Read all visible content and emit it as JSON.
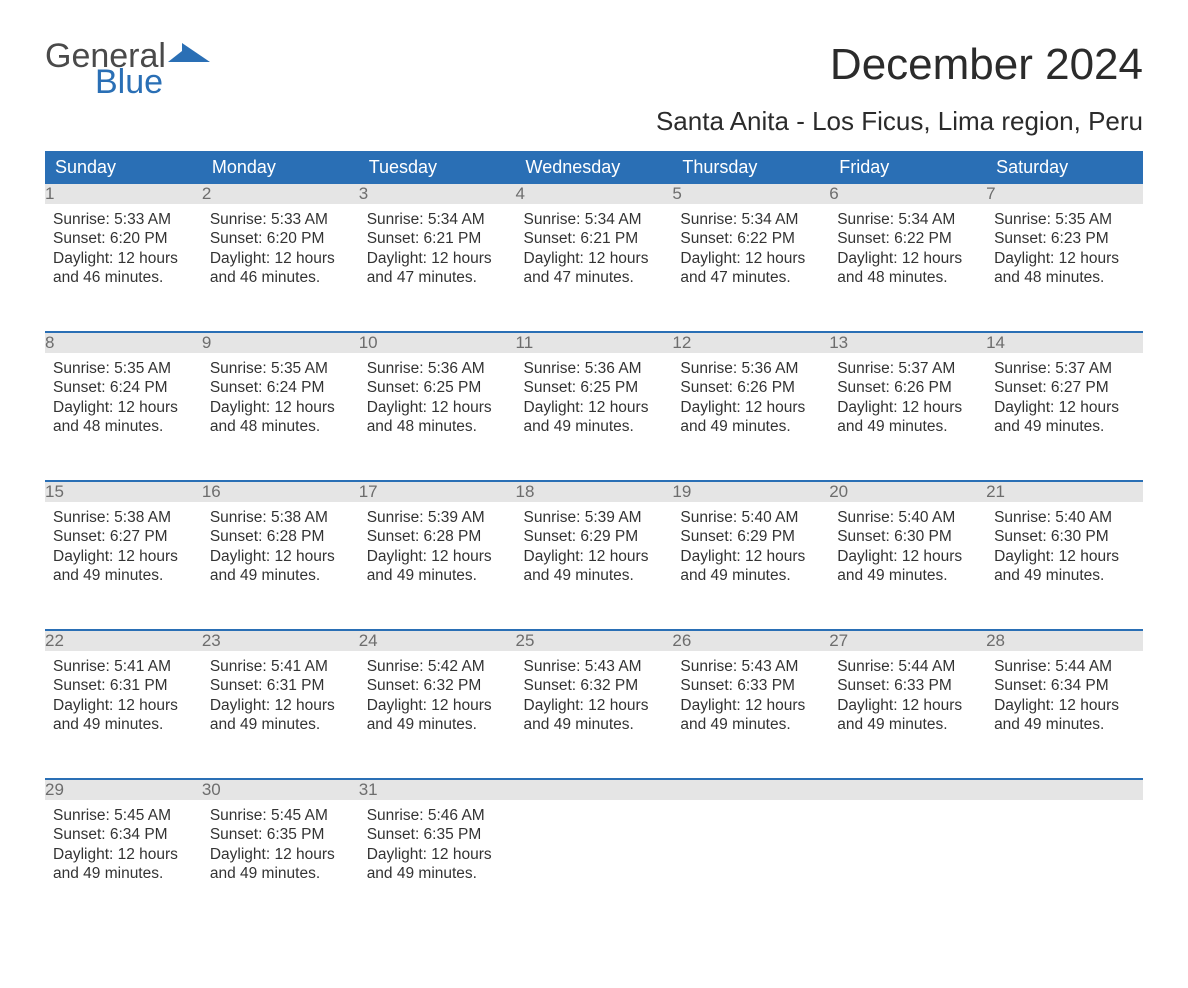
{
  "brand": {
    "word1": "General",
    "word2": "Blue",
    "accent_color": "#2a6fb5",
    "text_color": "#4a4a4a"
  },
  "title": "December 2024",
  "location": "Santa Anita - Los Ficus, Lima region, Peru",
  "colors": {
    "header_bg": "#2a6fb5",
    "header_text": "#ffffff",
    "daynum_bg": "#e5e5e5",
    "daynum_text": "#6d6d6d",
    "body_text": "#333333",
    "page_bg": "#ffffff",
    "week_border": "#2a6fb5"
  },
  "weekdays": [
    "Sunday",
    "Monday",
    "Tuesday",
    "Wednesday",
    "Thursday",
    "Friday",
    "Saturday"
  ],
  "weeks": [
    [
      {
        "n": "1",
        "sunrise": "Sunrise: 5:33 AM",
        "sunset": "Sunset: 6:20 PM",
        "d1": "Daylight: 12 hours",
        "d2": "and 46 minutes."
      },
      {
        "n": "2",
        "sunrise": "Sunrise: 5:33 AM",
        "sunset": "Sunset: 6:20 PM",
        "d1": "Daylight: 12 hours",
        "d2": "and 46 minutes."
      },
      {
        "n": "3",
        "sunrise": "Sunrise: 5:34 AM",
        "sunset": "Sunset: 6:21 PM",
        "d1": "Daylight: 12 hours",
        "d2": "and 47 minutes."
      },
      {
        "n": "4",
        "sunrise": "Sunrise: 5:34 AM",
        "sunset": "Sunset: 6:21 PM",
        "d1": "Daylight: 12 hours",
        "d2": "and 47 minutes."
      },
      {
        "n": "5",
        "sunrise": "Sunrise: 5:34 AM",
        "sunset": "Sunset: 6:22 PM",
        "d1": "Daylight: 12 hours",
        "d2": "and 47 minutes."
      },
      {
        "n": "6",
        "sunrise": "Sunrise: 5:34 AM",
        "sunset": "Sunset: 6:22 PM",
        "d1": "Daylight: 12 hours",
        "d2": "and 48 minutes."
      },
      {
        "n": "7",
        "sunrise": "Sunrise: 5:35 AM",
        "sunset": "Sunset: 6:23 PM",
        "d1": "Daylight: 12 hours",
        "d2": "and 48 minutes."
      }
    ],
    [
      {
        "n": "8",
        "sunrise": "Sunrise: 5:35 AM",
        "sunset": "Sunset: 6:24 PM",
        "d1": "Daylight: 12 hours",
        "d2": "and 48 minutes."
      },
      {
        "n": "9",
        "sunrise": "Sunrise: 5:35 AM",
        "sunset": "Sunset: 6:24 PM",
        "d1": "Daylight: 12 hours",
        "d2": "and 48 minutes."
      },
      {
        "n": "10",
        "sunrise": "Sunrise: 5:36 AM",
        "sunset": "Sunset: 6:25 PM",
        "d1": "Daylight: 12 hours",
        "d2": "and 48 minutes."
      },
      {
        "n": "11",
        "sunrise": "Sunrise: 5:36 AM",
        "sunset": "Sunset: 6:25 PM",
        "d1": "Daylight: 12 hours",
        "d2": "and 49 minutes."
      },
      {
        "n": "12",
        "sunrise": "Sunrise: 5:36 AM",
        "sunset": "Sunset: 6:26 PM",
        "d1": "Daylight: 12 hours",
        "d2": "and 49 minutes."
      },
      {
        "n": "13",
        "sunrise": "Sunrise: 5:37 AM",
        "sunset": "Sunset: 6:26 PM",
        "d1": "Daylight: 12 hours",
        "d2": "and 49 minutes."
      },
      {
        "n": "14",
        "sunrise": "Sunrise: 5:37 AM",
        "sunset": "Sunset: 6:27 PM",
        "d1": "Daylight: 12 hours",
        "d2": "and 49 minutes."
      }
    ],
    [
      {
        "n": "15",
        "sunrise": "Sunrise: 5:38 AM",
        "sunset": "Sunset: 6:27 PM",
        "d1": "Daylight: 12 hours",
        "d2": "and 49 minutes."
      },
      {
        "n": "16",
        "sunrise": "Sunrise: 5:38 AM",
        "sunset": "Sunset: 6:28 PM",
        "d1": "Daylight: 12 hours",
        "d2": "and 49 minutes."
      },
      {
        "n": "17",
        "sunrise": "Sunrise: 5:39 AM",
        "sunset": "Sunset: 6:28 PM",
        "d1": "Daylight: 12 hours",
        "d2": "and 49 minutes."
      },
      {
        "n": "18",
        "sunrise": "Sunrise: 5:39 AM",
        "sunset": "Sunset: 6:29 PM",
        "d1": "Daylight: 12 hours",
        "d2": "and 49 minutes."
      },
      {
        "n": "19",
        "sunrise": "Sunrise: 5:40 AM",
        "sunset": "Sunset: 6:29 PM",
        "d1": "Daylight: 12 hours",
        "d2": "and 49 minutes."
      },
      {
        "n": "20",
        "sunrise": "Sunrise: 5:40 AM",
        "sunset": "Sunset: 6:30 PM",
        "d1": "Daylight: 12 hours",
        "d2": "and 49 minutes."
      },
      {
        "n": "21",
        "sunrise": "Sunrise: 5:40 AM",
        "sunset": "Sunset: 6:30 PM",
        "d1": "Daylight: 12 hours",
        "d2": "and 49 minutes."
      }
    ],
    [
      {
        "n": "22",
        "sunrise": "Sunrise: 5:41 AM",
        "sunset": "Sunset: 6:31 PM",
        "d1": "Daylight: 12 hours",
        "d2": "and 49 minutes."
      },
      {
        "n": "23",
        "sunrise": "Sunrise: 5:41 AM",
        "sunset": "Sunset: 6:31 PM",
        "d1": "Daylight: 12 hours",
        "d2": "and 49 minutes."
      },
      {
        "n": "24",
        "sunrise": "Sunrise: 5:42 AM",
        "sunset": "Sunset: 6:32 PM",
        "d1": "Daylight: 12 hours",
        "d2": "and 49 minutes."
      },
      {
        "n": "25",
        "sunrise": "Sunrise: 5:43 AM",
        "sunset": "Sunset: 6:32 PM",
        "d1": "Daylight: 12 hours",
        "d2": "and 49 minutes."
      },
      {
        "n": "26",
        "sunrise": "Sunrise: 5:43 AM",
        "sunset": "Sunset: 6:33 PM",
        "d1": "Daylight: 12 hours",
        "d2": "and 49 minutes."
      },
      {
        "n": "27",
        "sunrise": "Sunrise: 5:44 AM",
        "sunset": "Sunset: 6:33 PM",
        "d1": "Daylight: 12 hours",
        "d2": "and 49 minutes."
      },
      {
        "n": "28",
        "sunrise": "Sunrise: 5:44 AM",
        "sunset": "Sunset: 6:34 PM",
        "d1": "Daylight: 12 hours",
        "d2": "and 49 minutes."
      }
    ],
    [
      {
        "n": "29",
        "sunrise": "Sunrise: 5:45 AM",
        "sunset": "Sunset: 6:34 PM",
        "d1": "Daylight: 12 hours",
        "d2": "and 49 minutes."
      },
      {
        "n": "30",
        "sunrise": "Sunrise: 5:45 AM",
        "sunset": "Sunset: 6:35 PM",
        "d1": "Daylight: 12 hours",
        "d2": "and 49 minutes."
      },
      {
        "n": "31",
        "sunrise": "Sunrise: 5:46 AM",
        "sunset": "Sunset: 6:35 PM",
        "d1": "Daylight: 12 hours",
        "d2": "and 49 minutes."
      },
      null,
      null,
      null,
      null
    ]
  ]
}
